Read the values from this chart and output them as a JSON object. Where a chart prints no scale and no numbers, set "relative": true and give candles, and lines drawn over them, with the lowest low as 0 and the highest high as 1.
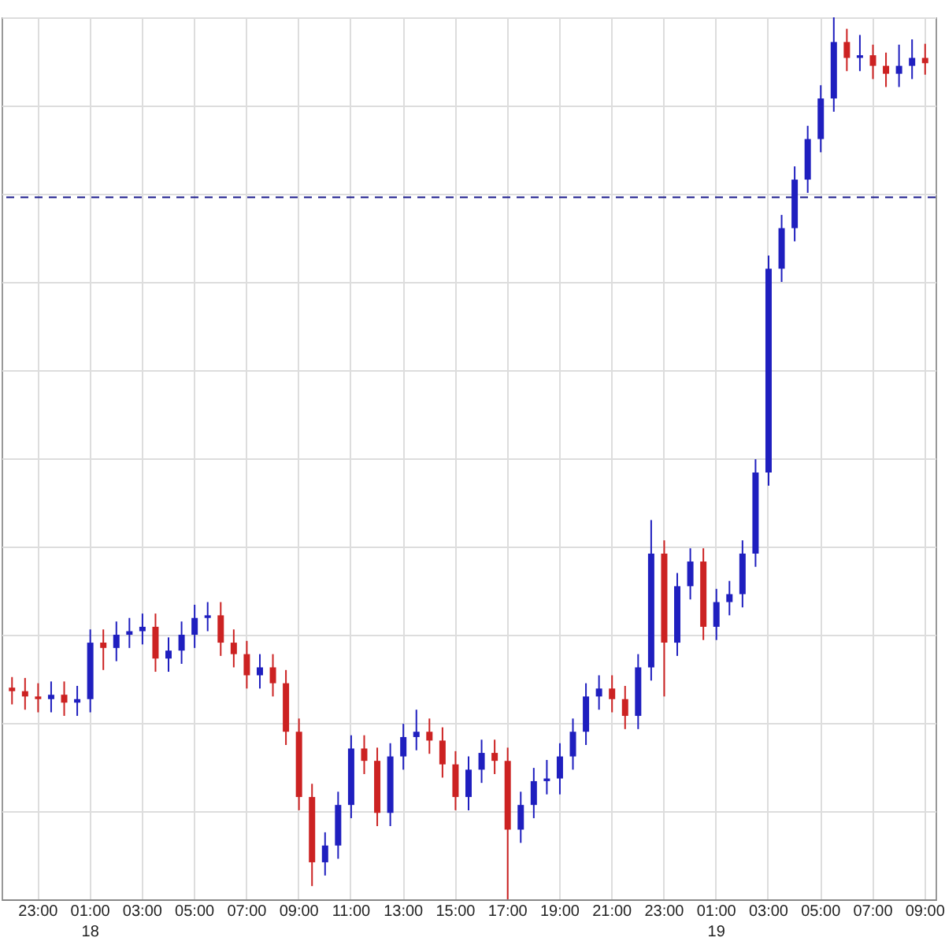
{
  "chart_data": {
    "type": "candlestick",
    "relative": true,
    "categories": [
      null,
      null,
      "23:00",
      null,
      null,
      null,
      "01:00\n18",
      null,
      null,
      null,
      "03:00",
      null,
      null,
      null,
      "05:00",
      null,
      null,
      null,
      "07:00",
      null,
      null,
      null,
      "09:00",
      null,
      null,
      null,
      "11:00",
      null,
      null,
      null,
      "13:00",
      null,
      null,
      null,
      "15:00",
      null,
      null,
      null,
      "17:00",
      null,
      null,
      null,
      "19:00",
      null,
      null,
      null,
      "21:00",
      null,
      null,
      null,
      "23:00",
      null,
      null,
      null,
      "01:00\n19",
      null,
      null,
      null,
      "03:00",
      null,
      null,
      null,
      "05:00",
      null,
      null,
      null,
      "07:00",
      null,
      null,
      null,
      "09:00"
    ],
    "ohlc": [
      [
        0.24,
        0.252,
        0.221,
        0.236
      ],
      [
        0.236,
        0.251,
        0.215,
        0.23
      ],
      [
        0.23,
        0.245,
        0.212,
        0.227
      ],
      [
        0.227,
        0.247,
        0.212,
        0.232
      ],
      [
        0.232,
        0.247,
        0.208,
        0.223
      ],
      [
        0.223,
        0.242,
        0.208,
        0.227
      ],
      [
        0.227,
        0.306,
        0.212,
        0.291
      ],
      [
        0.291,
        0.306,
        0.26,
        0.285
      ],
      [
        0.285,
        0.315,
        0.27,
        0.3
      ],
      [
        0.3,
        0.319,
        0.285,
        0.304
      ],
      [
        0.304,
        0.324,
        0.289,
        0.309
      ],
      [
        0.309,
        0.324,
        0.258,
        0.273
      ],
      [
        0.273,
        0.297,
        0.258,
        0.282
      ],
      [
        0.282,
        0.315,
        0.267,
        0.3
      ],
      [
        0.3,
        0.334,
        0.285,
        0.319
      ],
      [
        0.319,
        0.337,
        0.304,
        0.322
      ],
      [
        0.322,
        0.337,
        0.276,
        0.291
      ],
      [
        0.291,
        0.306,
        0.263,
        0.278
      ],
      [
        0.278,
        0.293,
        0.239,
        0.254
      ],
      [
        0.254,
        0.278,
        0.239,
        0.263
      ],
      [
        0.263,
        0.278,
        0.23,
        0.245
      ],
      [
        0.245,
        0.26,
        0.175,
        0.19
      ],
      [
        0.19,
        0.205,
        0.101,
        0.116
      ],
      [
        0.116,
        0.131,
        0.015,
        0.042
      ],
      [
        0.042,
        0.076,
        0.027,
        0.061
      ],
      [
        0.061,
        0.122,
        0.046,
        0.107
      ],
      [
        0.107,
        0.186,
        0.092,
        0.171
      ],
      [
        0.171,
        0.186,
        0.142,
        0.157
      ],
      [
        0.157,
        0.172,
        0.083,
        0.098
      ],
      [
        0.098,
        0.177,
        0.083,
        0.162
      ],
      [
        0.162,
        0.199,
        0.147,
        0.184
      ],
      [
        0.184,
        0.215,
        0.169,
        0.19
      ],
      [
        0.19,
        0.205,
        0.165,
        0.18
      ],
      [
        0.18,
        0.195,
        0.138,
        0.153
      ],
      [
        0.153,
        0.168,
        0.101,
        0.116
      ],
      [
        0.116,
        0.162,
        0.101,
        0.147
      ],
      [
        0.147,
        0.181,
        0.132,
        0.166
      ],
      [
        0.166,
        0.181,
        0.142,
        0.157
      ],
      [
        0.157,
        0.172,
        0.0,
        0.079
      ],
      [
        0.079,
        0.122,
        0.064,
        0.107
      ],
      [
        0.107,
        0.149,
        0.092,
        0.134
      ],
      [
        0.134,
        0.158,
        0.119,
        0.137
      ],
      [
        0.137,
        0.177,
        0.119,
        0.162
      ],
      [
        0.162,
        0.205,
        0.147,
        0.19
      ],
      [
        0.19,
        0.245,
        0.175,
        0.23
      ],
      [
        0.23,
        0.254,
        0.215,
        0.239
      ],
      [
        0.239,
        0.254,
        0.212,
        0.227
      ],
      [
        0.227,
        0.242,
        0.193,
        0.208
      ],
      [
        0.208,
        0.278,
        0.193,
        0.263
      ],
      [
        0.263,
        0.43,
        0.248,
        0.392
      ],
      [
        0.392,
        0.407,
        0.23,
        0.291
      ],
      [
        0.291,
        0.37,
        0.276,
        0.355
      ],
      [
        0.355,
        0.398,
        0.34,
        0.383
      ],
      [
        0.383,
        0.398,
        0.294,
        0.309
      ],
      [
        0.309,
        0.352,
        0.294,
        0.337
      ],
      [
        0.337,
        0.361,
        0.322,
        0.346
      ],
      [
        0.346,
        0.407,
        0.331,
        0.392
      ],
      [
        0.392,
        0.499,
        0.377,
        0.484
      ],
      [
        0.484,
        0.73,
        0.469,
        0.715
      ],
      [
        0.715,
        0.776,
        0.7,
        0.761
      ],
      [
        0.761,
        0.831,
        0.746,
        0.816
      ],
      [
        0.816,
        0.877,
        0.801,
        0.862
      ],
      [
        0.862,
        0.923,
        0.847,
        0.908
      ],
      [
        0.908,
        1.0,
        0.893,
        0.972
      ],
      [
        0.972,
        0.987,
        0.939,
        0.954
      ],
      [
        0.954,
        0.98,
        0.939,
        0.957
      ],
      [
        0.957,
        0.969,
        0.93,
        0.945
      ],
      [
        0.945,
        0.96,
        0.921,
        0.936
      ],
      [
        0.936,
        0.969,
        0.921,
        0.945
      ],
      [
        0.945,
        0.975,
        0.93,
        0.954
      ],
      [
        0.954,
        0.97,
        0.935,
        0.948
      ]
    ],
    "colors": [
      "#cc2222",
      "#cc2222",
      "#cc2222",
      "#1f1fbf",
      "#cc2222",
      "#1f1fbf",
      "#1f1fbf",
      "#cc2222",
      "#1f1fbf",
      "#1f1fbf",
      "#1f1fbf",
      "#cc2222",
      "#1f1fbf",
      "#1f1fbf",
      "#1f1fbf",
      "#1f1fbf",
      "#cc2222",
      "#cc2222",
      "#cc2222",
      "#1f1fbf",
      "#cc2222",
      "#cc2222",
      "#cc2222",
      "#cc2222",
      "#1f1fbf",
      "#1f1fbf",
      "#1f1fbf",
      "#cc2222",
      "#cc2222",
      "#1f1fbf",
      "#1f1fbf",
      "#1f1fbf",
      "#cc2222",
      "#cc2222",
      "#cc2222",
      "#1f1fbf",
      "#1f1fbf",
      "#cc2222",
      "#cc2222",
      "#1f1fbf",
      "#1f1fbf",
      "#1f1fbf",
      "#1f1fbf",
      "#1f1fbf",
      "#1f1fbf",
      "#1f1fbf",
      "#cc2222",
      "#cc2222",
      "#1f1fbf",
      "#1f1fbf",
      "#cc2222",
      "#1f1fbf",
      "#1f1fbf",
      "#cc2222",
      "#1f1fbf",
      "#1f1fbf",
      "#1f1fbf",
      "#1f1fbf",
      "#1f1fbf",
      "#1f1fbf",
      "#1f1fbf",
      "#1f1fbf",
      "#1f1fbf",
      "#1f1fbf",
      "#cc2222",
      "#1f1fbf",
      "#cc2222",
      "#cc2222",
      "#1f1fbf",
      "#1f1fbf",
      "#cc2222"
    ],
    "ref_lines": [
      {
        "axis": "y",
        "value": 0.796,
        "color": "#1a1a8c",
        "line_style": "dashed"
      }
    ],
    "grid": true,
    "tick_labels": "x"
  }
}
